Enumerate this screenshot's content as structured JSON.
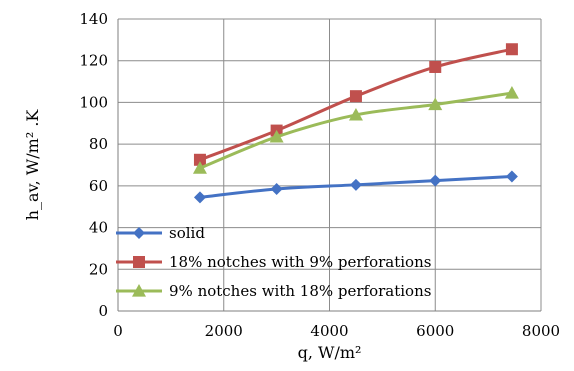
{
  "chart_data": {
    "type": "line",
    "xlabel": "q, W/m²",
    "ylabel": "h_av, W/m² .K",
    "xlim": [
      0,
      8000
    ],
    "ylim": [
      0,
      140
    ],
    "xticks": [
      0,
      2000,
      4000,
      6000,
      8000
    ],
    "yticks": [
      0,
      20,
      40,
      60,
      80,
      100,
      120,
      140
    ],
    "grid": true,
    "legend_position": "bottom-left",
    "series": [
      {
        "name": "solid",
        "color": "#4472c4",
        "marker": "diamond",
        "x": [
          1550,
          3000,
          4500,
          6000,
          7450
        ],
        "y": [
          54.5,
          58.5,
          60.5,
          62.5,
          64.5
        ]
      },
      {
        "name": "18% notches with 9% perforations",
        "color": "#c0504d",
        "marker": "square",
        "x": [
          1550,
          3000,
          4500,
          6000,
          7450
        ],
        "y": [
          72.5,
          86.5,
          103,
          117,
          125.5
        ]
      },
      {
        "name": "9% notches with 18% perforations",
        "color": "#9bbb59",
        "marker": "triangle",
        "x": [
          1550,
          3000,
          4500,
          6000,
          7450
        ],
        "y": [
          68.5,
          83.5,
          94,
          99,
          104.5
        ]
      }
    ]
  }
}
